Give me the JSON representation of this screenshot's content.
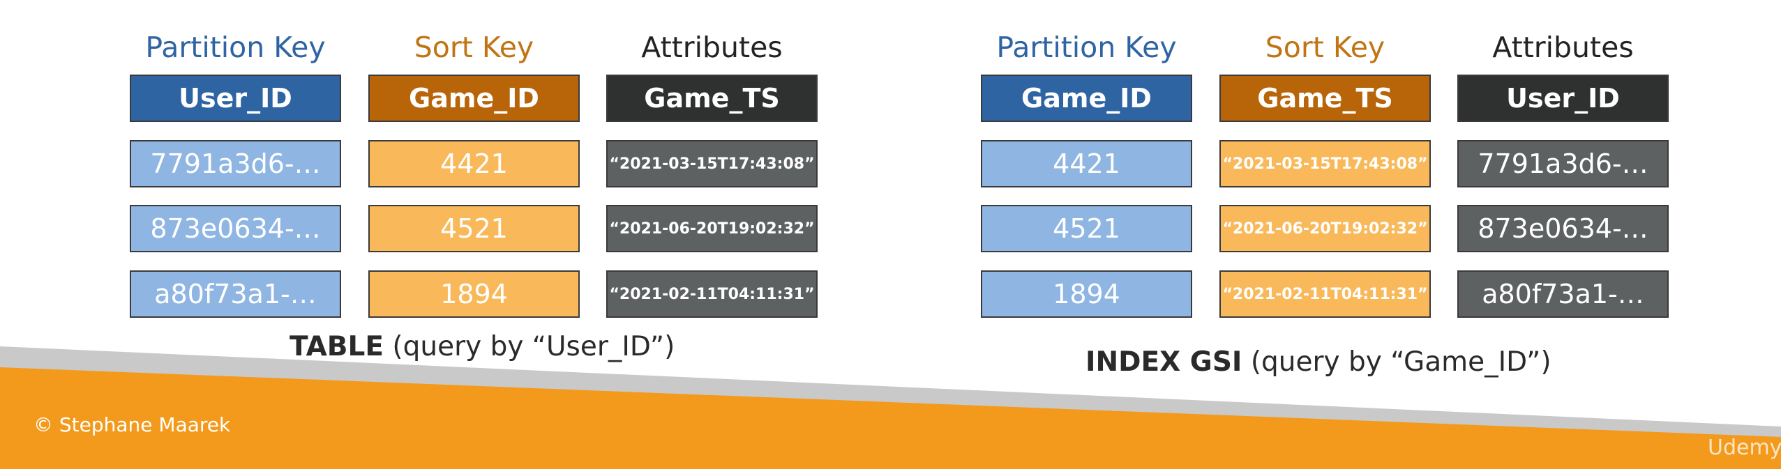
{
  "left_table": {
    "column_titles": [
      "Partition Key",
      "Sort Key",
      "Attributes"
    ],
    "headers": [
      "User_ID",
      "Game_ID",
      "Game_TS"
    ],
    "rows": [
      [
        "7791a3d6-…",
        "4421",
        "“2021-03-15T17:43:08”"
      ],
      [
        "873e0634-…",
        "4521",
        "“2021-06-20T19:02:32”"
      ],
      [
        "a80f73a1-…",
        "1894",
        "“2021-02-11T04:11:31”"
      ]
    ],
    "caption_bold": "TABLE",
    "caption_rest": " (query by “User_ID”)"
  },
  "right_table": {
    "column_titles": [
      "Partition Key",
      "Sort Key",
      "Attributes"
    ],
    "headers": [
      "Game_ID",
      "Game_TS",
      "User_ID"
    ],
    "rows": [
      [
        "4421",
        "“2021-03-15T17:43:08”",
        "7791a3d6-…"
      ],
      [
        "4521",
        "“2021-06-20T19:02:32”",
        "873e0634-…"
      ],
      [
        "1894",
        "“2021-02-11T04:11:31”",
        "a80f73a1-…"
      ]
    ],
    "caption_bold": "INDEX GSI",
    "caption_rest": " (query by “Game_ID”)"
  },
  "footer": {
    "copyright": "© Stephane Maarek",
    "watermark": "Udemy"
  },
  "colors": {
    "partition_key": "#2f64a3",
    "sort_key": "#b8650a",
    "attributes": "#2e3130",
    "partition_cell": "#8fb5e3",
    "sort_cell": "#f9b95a",
    "attribute_cell": "#5e6161",
    "footer_band": "#f39a1c"
  }
}
